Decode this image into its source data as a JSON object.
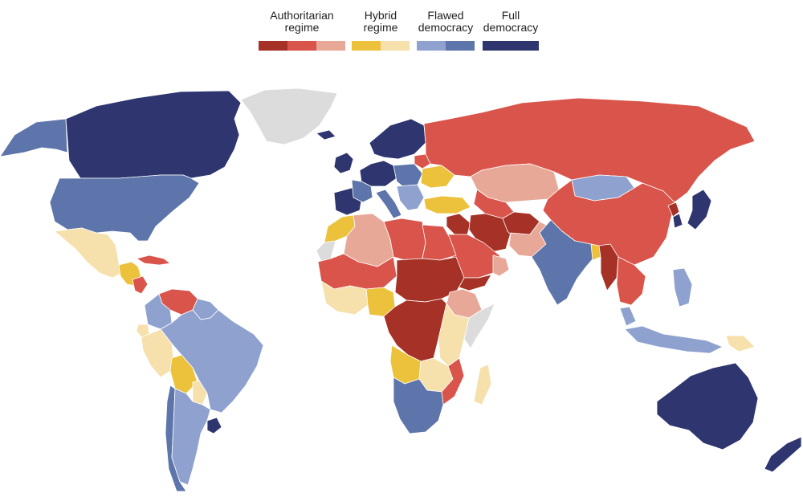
{
  "legend": {
    "authoritarian": {
      "label": "Authoritarian\nregime",
      "colors": [
        "#a63126",
        "#d9544a",
        "#e8a898"
      ]
    },
    "hybrid": {
      "label": "Hybrid\nregime",
      "colors": [
        "#ecc23d",
        "#f6e0ac"
      ]
    },
    "flawed": {
      "label": "Flawed\ndemocracy",
      "colors": [
        "#8fa2cf",
        "#5d75aa"
      ]
    },
    "full": {
      "label": "Full\ndemocracy",
      "colors": [
        "#2e356f"
      ]
    }
  },
  "nodata_color": "#dcdcdc",
  "regions": [
    {
      "id": "alaska",
      "name": "Alaska",
      "cat": "flawed-2"
    },
    {
      "id": "canada",
      "name": "Canada",
      "cat": "full"
    },
    {
      "id": "greenland",
      "name": "Greenland",
      "cat": "nodata"
    },
    {
      "id": "usa",
      "name": "United States",
      "cat": "flawed-2"
    },
    {
      "id": "mexico",
      "name": "Mexico",
      "cat": "hybrid-2"
    },
    {
      "id": "central-america",
      "name": "Central America",
      "cat": "hybrid-1"
    },
    {
      "id": "nicaragua",
      "name": "Nicaragua",
      "cat": "auth-2"
    },
    {
      "id": "cuba",
      "name": "Cuba",
      "cat": "auth-2"
    },
    {
      "id": "venezuela",
      "name": "Venezuela",
      "cat": "auth-2"
    },
    {
      "id": "colombia",
      "name": "Colombia",
      "cat": "flawed-1"
    },
    {
      "id": "guianas",
      "name": "Guyana / Suriname",
      "cat": "flawed-1"
    },
    {
      "id": "brazil",
      "name": "Brazil",
      "cat": "flawed-1"
    },
    {
      "id": "ecuador",
      "name": "Ecuador",
      "cat": "hybrid-2"
    },
    {
      "id": "peru",
      "name": "Peru",
      "cat": "hybrid-2"
    },
    {
      "id": "bolivia",
      "name": "Bolivia",
      "cat": "hybrid-1"
    },
    {
      "id": "paraguay",
      "name": "Paraguay",
      "cat": "hybrid-2"
    },
    {
      "id": "chile",
      "name": "Chile",
      "cat": "flawed-2"
    },
    {
      "id": "argentina",
      "name": "Argentina",
      "cat": "flawed-1"
    },
    {
      "id": "uruguay",
      "name": "Uruguay",
      "cat": "full"
    },
    {
      "id": "iceland",
      "name": "Iceland",
      "cat": "full"
    },
    {
      "id": "uk-ireland",
      "name": "United Kingdom / Ireland",
      "cat": "full"
    },
    {
      "id": "scandinavia",
      "name": "Scandinavia",
      "cat": "full"
    },
    {
      "id": "western-europe",
      "name": "Western Europe",
      "cat": "full"
    },
    {
      "id": "france",
      "name": "France",
      "cat": "flawed-2"
    },
    {
      "id": "iberia",
      "name": "Spain / Portugal",
      "cat": "full"
    },
    {
      "id": "central-europe",
      "name": "Central Europe",
      "cat": "flawed-2"
    },
    {
      "id": "italy",
      "name": "Italy",
      "cat": "flawed-2"
    },
    {
      "id": "balkans",
      "name": "Balkans",
      "cat": "flawed-1"
    },
    {
      "id": "ukraine",
      "name": "Ukraine",
      "cat": "hybrid-1"
    },
    {
      "id": "belarus",
      "name": "Belarus",
      "cat": "auth-2"
    },
    {
      "id": "turkey",
      "name": "Turkey",
      "cat": "hybrid-1"
    },
    {
      "id": "russia",
      "name": "Russia",
      "cat": "auth-2"
    },
    {
      "id": "kazakhstan",
      "name": "Kazakhstan",
      "cat": "auth-3"
    },
    {
      "id": "mongolia",
      "name": "Mongolia",
      "cat": "flawed-1"
    },
    {
      "id": "china",
      "name": "China",
      "cat": "auth-2"
    },
    {
      "id": "north-korea",
      "name": "North Korea",
      "cat": "auth-1"
    },
    {
      "id": "south-korea",
      "name": "South Korea",
      "cat": "full"
    },
    {
      "id": "japan",
      "name": "Japan",
      "cat": "full"
    },
    {
      "id": "iran",
      "name": "Iran",
      "cat": "auth-1"
    },
    {
      "id": "central-asia",
      "name": "Central Asia",
      "cat": "auth-2"
    },
    {
      "id": "afghanistan",
      "name": "Afghanistan",
      "cat": "auth-1"
    },
    {
      "id": "pakistan",
      "name": "Pakistan",
      "cat": "auth-3"
    },
    {
      "id": "india",
      "name": "India",
      "cat": "flawed-2"
    },
    {
      "id": "bangladesh",
      "name": "Bangladesh",
      "cat": "hybrid-1"
    },
    {
      "id": "myanmar",
      "name": "Myanmar",
      "cat": "auth-1"
    },
    {
      "id": "indochina",
      "name": "Indochina",
      "cat": "auth-2"
    },
    {
      "id": "malaysia",
      "name": "Malaysia",
      "cat": "flawed-1"
    },
    {
      "id": "indonesia",
      "name": "Indonesia",
      "cat": "flawed-1"
    },
    {
      "id": "philippines",
      "name": "Philippines",
      "cat": "flawed-1"
    },
    {
      "id": "papua-new-guinea",
      "name": "Papua New Guinea",
      "cat": "hybrid-2"
    },
    {
      "id": "australia",
      "name": "Australia",
      "cat": "full"
    },
    {
      "id": "new-zealand",
      "name": "New Zealand",
      "cat": "full"
    },
    {
      "id": "arabia",
      "name": "Saudi Arabia",
      "cat": "auth-2"
    },
    {
      "id": "oman",
      "name": "Oman",
      "cat": "auth-3"
    },
    {
      "id": "yemen",
      "name": "Yemen",
      "cat": "auth-1"
    },
    {
      "id": "iraq-syria",
      "name": "Iraq / Syria",
      "cat": "auth-1"
    },
    {
      "id": "morocco",
      "name": "Morocco",
      "cat": "hybrid-1"
    },
    {
      "id": "western-sahara",
      "name": "Western Sahara",
      "cat": "nodata"
    },
    {
      "id": "algeria",
      "name": "Algeria",
      "cat": "auth-3"
    },
    {
      "id": "libya",
      "name": "Libya",
      "cat": "auth-2"
    },
    {
      "id": "egypt",
      "name": "Egypt",
      "cat": "auth-2"
    },
    {
      "id": "sahel",
      "name": "Sahel",
      "cat": "auth-2"
    },
    {
      "id": "west-africa",
      "name": "West Africa",
      "cat": "hybrid-2"
    },
    {
      "id": "nigeria",
      "name": "Nigeria",
      "cat": "hybrid-1"
    },
    {
      "id": "chad-sudan",
      "name": "Chad / Sudan",
      "cat": "auth-1"
    },
    {
      "id": "ethiopia",
      "name": "Ethiopia",
      "cat": "auth-3"
    },
    {
      "id": "somalia",
      "name": "Somalia",
      "cat": "nodata"
    },
    {
      "id": "central-africa",
      "name": "Central Africa",
      "cat": "auth-1"
    },
    {
      "id": "east-africa",
      "name": "East Africa",
      "cat": "hybrid-2"
    },
    {
      "id": "angola",
      "name": "Angola",
      "cat": "hybrid-1"
    },
    {
      "id": "zambia-zim",
      "name": "Zambia / Zimbabwe",
      "cat": "hybrid-2"
    },
    {
      "id": "mozambique",
      "name": "Mozambique",
      "cat": "auth-2"
    },
    {
      "id": "southern-africa",
      "name": "Southern Africa",
      "cat": "flawed-2"
    },
    {
      "id": "madagascar",
      "name": "Madagascar",
      "cat": "hybrid-2"
    }
  ]
}
